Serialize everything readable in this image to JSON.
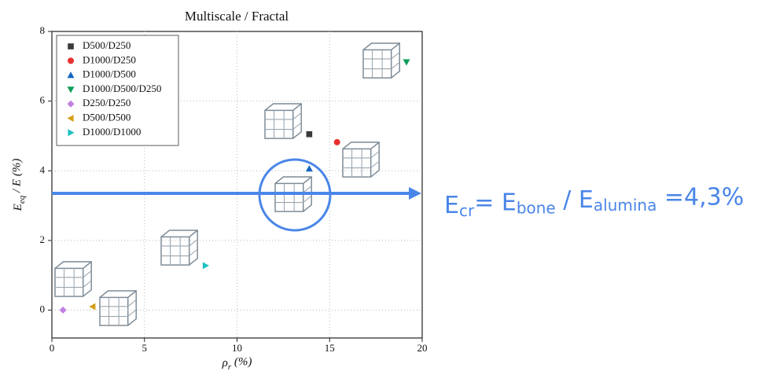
{
  "chart_data": {
    "type": "scatter",
    "title": "Multiscale / Fractal",
    "x_label": [
      "ρ",
      "r",
      " (%)"
    ],
    "y_label": [
      "E",
      "eq",
      " / E (%)"
    ],
    "xlim": [
      0,
      20
    ],
    "xticks": [
      0,
      5,
      10,
      15,
      20
    ],
    "ylim": [
      -0.8,
      8
    ],
    "yticks": [
      0,
      2,
      4,
      6,
      8
    ],
    "grid": true,
    "legend": "upper left",
    "series": [
      {
        "name": "D500/D250",
        "color": "#3a3a3a",
        "marker": "square",
        "x": [
          13.9
        ],
        "values": [
          5.05
        ]
      },
      {
        "name": "D1000/D250",
        "color": "#e8302f",
        "marker": "circle",
        "x": [
          15.4
        ],
        "values": [
          4.82
        ]
      },
      {
        "name": "D1000/D500",
        "color": "#1565c0",
        "marker": "triangle-up",
        "x": [
          13.9
        ],
        "values": [
          4.06
        ]
      },
      {
        "name": "D1000/D500/D250",
        "color": "#0f9d58",
        "marker": "triangle-down",
        "x": [
          19.15
        ],
        "values": [
          7.12
        ]
      },
      {
        "name": "D250/D250",
        "color": "#c080e0",
        "marker": "diamond",
        "x": [
          0.6
        ],
        "values": [
          0
        ]
      },
      {
        "name": "D500/D500",
        "color": "#d4a017",
        "marker": "triangle-left",
        "x": [
          2.2
        ],
        "values": [
          0.1
        ]
      },
      {
        "name": "D1000/D1000",
        "color": "#20c0c0",
        "marker": "triangle-right",
        "x": [
          8.3
        ],
        "values": [
          1.28
        ]
      }
    ],
    "annotation": [
      "E",
      "cr",
      "= E",
      "bone",
      " / E",
      "alumina",
      " =4,3%"
    ]
  }
}
